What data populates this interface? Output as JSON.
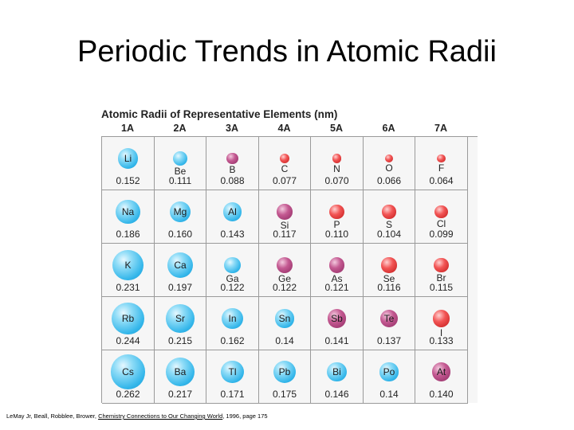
{
  "slide": {
    "title": "Periodic Trends in Atomic Radii"
  },
  "chart_data": {
    "type": "table",
    "title": "Atomic Radii of Representative Elements (nm)",
    "groups": [
      "1A",
      "2A",
      "3A",
      "4A",
      "5A",
      "6A",
      "7A"
    ],
    "rows": [
      [
        {
          "symbol": "Li",
          "radius": "0.152",
          "color": "blue"
        },
        {
          "symbol": "Be",
          "radius": "0.111",
          "color": "blue"
        },
        {
          "symbol": "B",
          "radius": "0.088",
          "color": "purple"
        },
        {
          "symbol": "C",
          "radius": "0.077",
          "color": "red"
        },
        {
          "symbol": "N",
          "radius": "0.070",
          "color": "red"
        },
        {
          "symbol": "O",
          "radius": "0.066",
          "color": "red"
        },
        {
          "symbol": "F",
          "radius": "0.064",
          "color": "red"
        }
      ],
      [
        {
          "symbol": "Na",
          "radius": "0.186",
          "color": "blue"
        },
        {
          "symbol": "Mg",
          "radius": "0.160",
          "color": "blue"
        },
        {
          "symbol": "Al",
          "radius": "0.143",
          "color": "blue"
        },
        {
          "symbol": "Si",
          "radius": "0.117",
          "color": "purple"
        },
        {
          "symbol": "P",
          "radius": "0.110",
          "color": "red"
        },
        {
          "symbol": "S",
          "radius": "0.104",
          "color": "red"
        },
        {
          "symbol": "Cl",
          "radius": "0.099",
          "color": "red"
        }
      ],
      [
        {
          "symbol": "K",
          "radius": "0.231",
          "color": "blue"
        },
        {
          "symbol": "Ca",
          "radius": "0.197",
          "color": "blue"
        },
        {
          "symbol": "Ga",
          "radius": "0.122",
          "color": "blue"
        },
        {
          "symbol": "Ge",
          "radius": "0.122",
          "color": "purple"
        },
        {
          "symbol": "As",
          "radius": "0.121",
          "color": "purple"
        },
        {
          "symbol": "Se",
          "radius": "0.116",
          "color": "red"
        },
        {
          "symbol": "Br",
          "radius": "0.115",
          "color": "red"
        }
      ],
      [
        {
          "symbol": "Rb",
          "radius": "0.244",
          "color": "blue"
        },
        {
          "symbol": "Sr",
          "radius": "0.215",
          "color": "blue"
        },
        {
          "symbol": "In",
          "radius": "0.162",
          "color": "blue"
        },
        {
          "symbol": "Sn",
          "radius": "0.14",
          "color": "blue"
        },
        {
          "symbol": "Sb",
          "radius": "0.141",
          "color": "purple"
        },
        {
          "symbol": "Te",
          "radius": "0.137",
          "color": "purple"
        },
        {
          "symbol": "I",
          "radius": "0.133",
          "color": "red"
        }
      ],
      [
        {
          "symbol": "Cs",
          "radius": "0.262",
          "color": "blue"
        },
        {
          "symbol": "Ba",
          "radius": "0.217",
          "color": "blue"
        },
        {
          "symbol": "Tl",
          "radius": "0.171",
          "color": "blue"
        },
        {
          "symbol": "Pb",
          "radius": "0.175",
          "color": "blue"
        },
        {
          "symbol": "Bi",
          "radius": "0.146",
          "color": "blue"
        },
        {
          "symbol": "Po",
          "radius": "0.14",
          "color": "blue"
        },
        {
          "symbol": "At",
          "radius": "0.140",
          "color": "purple"
        }
      ]
    ]
  },
  "citation": {
    "before": "LeMay Jr, Beall, Robblee, Brower, ",
    "book": "Chemistry Connections to Our Changing World",
    "after": ", 1996, page 175"
  }
}
